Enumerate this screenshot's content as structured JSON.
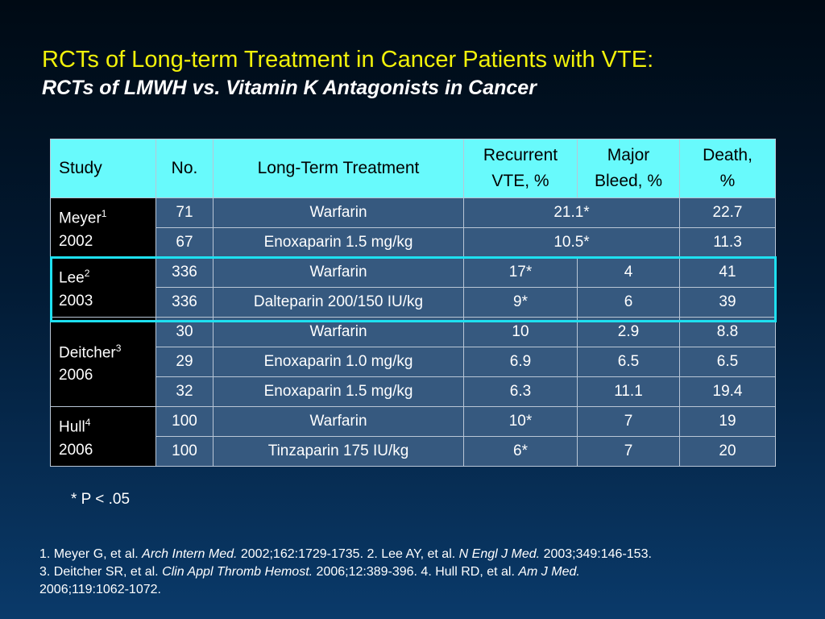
{
  "slide": {
    "title": "RCTs of Long-term Treatment in Cancer Patients with VTE:",
    "subtitle": "RCTs of LMWH vs. Vitamin K Antagonists in Cancer"
  },
  "table": {
    "headers": {
      "study": "Study",
      "no": "No.",
      "treatment": "Long-Term Treatment",
      "recurrent_line1": "Recurrent",
      "recurrent_line2": "VTE, %",
      "bleed_line1": "Major",
      "bleed_line2": "Bleed, %",
      "death_line1": "Death,",
      "death_line2": "%"
    },
    "studies": [
      {
        "name": "Meyer",
        "ref": "1",
        "year": "2002"
      },
      {
        "name": "Lee",
        "ref": "2",
        "year": "2003"
      },
      {
        "name": "Deitcher",
        "ref": "3",
        "year": "2006"
      },
      {
        "name": "Hull",
        "ref": "4",
        "year": "2006"
      }
    ],
    "rows": [
      {
        "no": "71",
        "treatment": "Warfarin",
        "recurrent_and_bleed": "21.1*",
        "death": "22.7"
      },
      {
        "no": "67",
        "treatment": "Enoxaparin 1.5 mg/kg",
        "recurrent_and_bleed": "10.5*",
        "death": "11.3"
      },
      {
        "no": "336",
        "treatment": "Warfarin",
        "recurrent": "17*",
        "bleed": "4",
        "death": "41"
      },
      {
        "no": "336",
        "treatment": "Dalteparin 200/150 IU/kg",
        "recurrent": "9*",
        "bleed": "6",
        "death": "39"
      },
      {
        "no": "30",
        "treatment": "Warfarin",
        "recurrent": "10",
        "bleed": "2.9",
        "death": "8.8"
      },
      {
        "no": "29",
        "treatment": "Enoxaparin 1.0 mg/kg",
        "recurrent": "6.9",
        "bleed": "6.5",
        "death": "6.5"
      },
      {
        "no": "32",
        "treatment": "Enoxaparin 1.5 mg/kg",
        "recurrent": "6.3",
        "bleed": "11.1",
        "death": "19.4"
      },
      {
        "no": "100",
        "treatment": "Warfarin",
        "recurrent": "10*",
        "bleed": "7",
        "death": "19"
      },
      {
        "no": "100",
        "treatment": "Tinzaparin 175 IU/kg",
        "recurrent": "6*",
        "bleed": "7",
        "death": "20"
      }
    ]
  },
  "footnote": "* P < .05",
  "references": {
    "r1_prefix": "1. Meyer G, et al. ",
    "r1_journal": "Arch Intern Med.",
    "r1_suffix": " 2002;162:1729-1735. 2. Lee AY, et al. ",
    "r2_journal": "N Engl J Med.",
    "r2_suffix": " 2003;349:146-153.",
    "r3_prefix": "3. Deitcher SR, et al. ",
    "r3_journal": "Clin Appl Thromb Hemost.",
    "r3_suffix": " 2006;12:389-396. 4. Hull RD, et al. ",
    "r4_journal": "Am J Med.",
    "r4_suffix": "2006;119:1062-1072."
  },
  "colors": {
    "title": "#f2f20a",
    "header_bg": "#68fafc",
    "cell_bg": "#36597f",
    "study_bg": "#000000",
    "highlight_border": "#1ee0f0"
  }
}
